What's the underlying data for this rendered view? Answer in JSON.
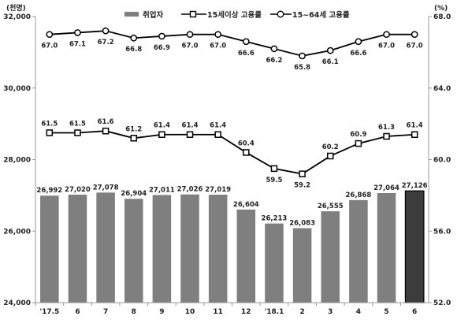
{
  "chart_data": {
    "type": "bar",
    "categories": [
      "'17.5",
      "6",
      "7",
      "8",
      "9",
      "10",
      "11",
      "12",
      "'18.1",
      "2",
      "3",
      "4",
      "5",
      "6"
    ],
    "y_left_unit": "(천명)",
    "y_right_unit": "(%)",
    "y_left_ticks": [
      "24,000",
      "26,000",
      "28,000",
      "30,000",
      "32,000"
    ],
    "y_right_ticks": [
      "52.0",
      "56.0",
      "60.0",
      "64.0",
      "68.0"
    ],
    "ylim_left": [
      24000,
      32000
    ],
    "ylim_right": [
      52,
      68
    ],
    "grid": false,
    "legend_position": "top",
    "series": [
      {
        "name": "취업자",
        "kind": "bar",
        "axis": "left",
        "values": [
          26992,
          27020,
          27078,
          26904,
          27011,
          27026,
          27019,
          26604,
          26213,
          26083,
          26555,
          26868,
          27064,
          27126
        ],
        "labels": [
          "26,992",
          "27,020",
          "27,078",
          "26,904",
          "27,011",
          "27,026",
          "27,019",
          "26,604",
          "26,213",
          "26,083",
          "26,555",
          "26,868",
          "27,064",
          "27,126"
        ],
        "color": "#7f7f7f",
        "highlight_color": "#3c3c3c"
      },
      {
        "name": "15세이상 고용률",
        "kind": "line",
        "axis": "right",
        "marker": "square",
        "values": [
          61.5,
          61.5,
          61.6,
          61.2,
          61.4,
          61.4,
          61.4,
          60.4,
          59.5,
          59.2,
          60.2,
          60.9,
          61.3,
          61.4
        ],
        "labels": [
          "61.5",
          "61.5",
          "61.6",
          "61.2",
          "61.4",
          "61.4",
          "61.4",
          "60.4",
          "59.5",
          "59.2",
          "60.2",
          "60.9",
          "61.3",
          "61.4"
        ]
      },
      {
        "name": "15~64세 고용률",
        "kind": "line",
        "axis": "right",
        "marker": "circle",
        "values": [
          67.0,
          67.1,
          67.2,
          66.8,
          66.9,
          67.0,
          67.0,
          66.6,
          66.2,
          65.8,
          66.1,
          66.6,
          67.0,
          67.0
        ],
        "labels": [
          "67.0",
          "67.1",
          "67.2",
          "66.8",
          "66.9",
          "67.0",
          "67.0",
          "66.6",
          "66.2",
          "65.8",
          "66.1",
          "66.6",
          "67.0",
          "67.0"
        ]
      }
    ]
  }
}
